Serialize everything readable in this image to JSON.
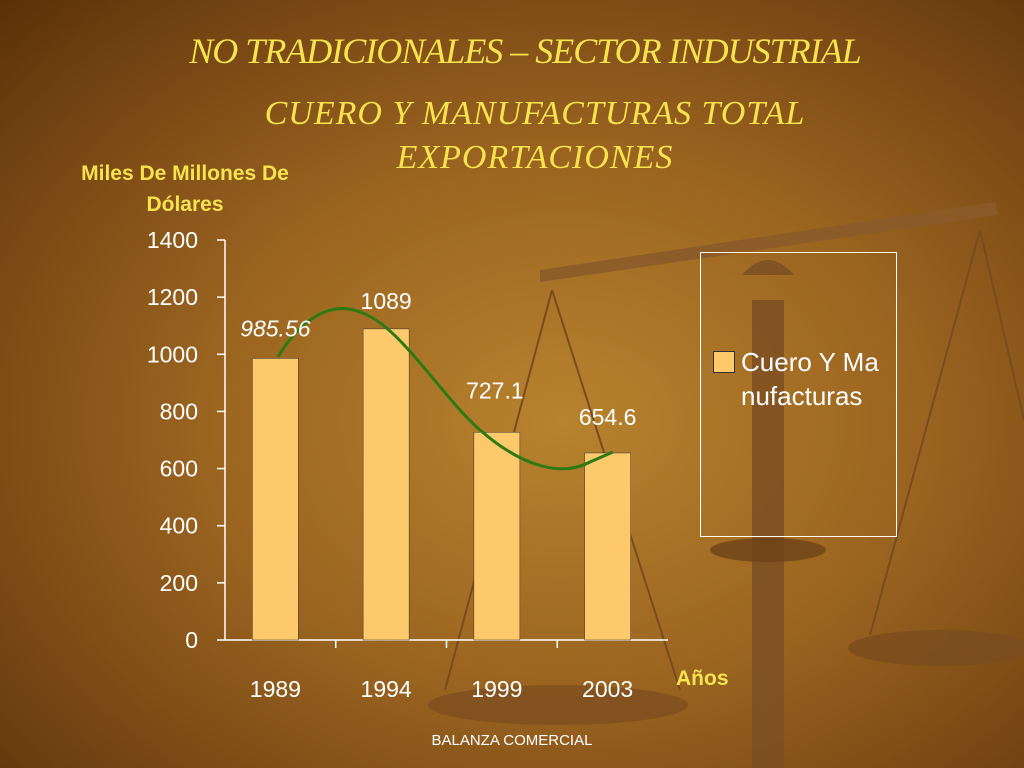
{
  "chart_data": {
    "type": "bar",
    "title": "NO TRADICIONALES –  SECTOR  INDUSTRIAL",
    "subtitle": "CUERO Y MANUFACTURAS TOTAL EXPORTACIONES",
    "y_label": "Miles De Millones De Dólares",
    "x_label": "Años",
    "categories": [
      "1989",
      "1994",
      "1999",
      "2003"
    ],
    "series": [
      {
        "name": "Cuero Y Manufacturas",
        "color": "#fdc96b",
        "values": [
          985.56,
          1089,
          727.1,
          654.6
        ]
      }
    ],
    "ylim": [
      0,
      1400
    ],
    "yticks": [
      0,
      200,
      400,
      600,
      800,
      1000,
      1200,
      1400
    ],
    "footer": "BALANZA COMERCIAL"
  }
}
